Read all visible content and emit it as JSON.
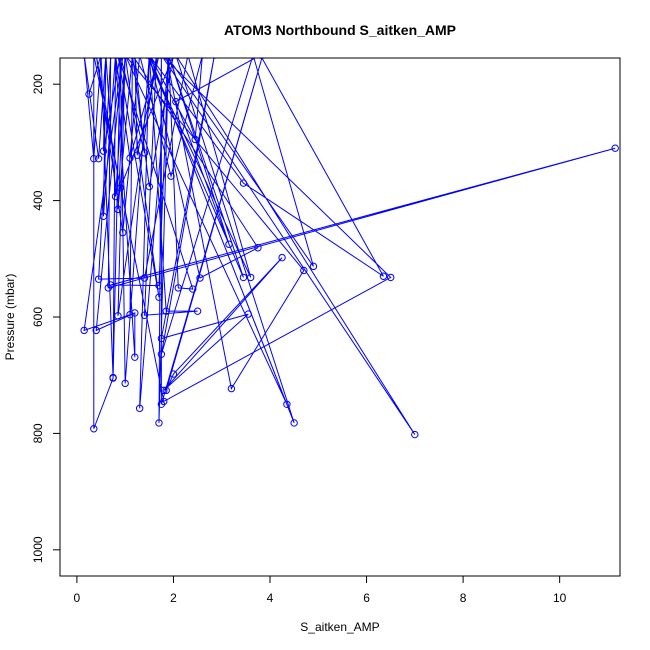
{
  "chart_data": {
    "type": "line",
    "title": "ATOM3 Northbound S_aitken_AMP",
    "xlabel": "S_aitken_AMP",
    "ylabel": "Pressure (mbar)",
    "xlim": [
      -0.35,
      11.25
    ],
    "ylim": [
      1045,
      155
    ],
    "y_reversed": true,
    "x_ticks": [
      0,
      2,
      4,
      6,
      8,
      10
    ],
    "y_ticks": [
      200,
      400,
      600,
      800,
      1000
    ],
    "grid": false,
    "legend": "none",
    "colors": {
      "series": "#0000ff"
    },
    "series": [
      {
        "marker": "open-circle",
        "points": [
          [
            0.5,
            150
          ],
          [
            0.25,
            217
          ],
          [
            0.5,
            150
          ],
          [
            0.35,
            328
          ],
          [
            0.15,
            150
          ],
          [
            0.45,
            328
          ],
          [
            0.6,
            150
          ],
          [
            0.55,
            315
          ],
          [
            0.9,
            150
          ],
          [
            1.4,
            318
          ],
          [
            1.2,
            150
          ],
          [
            1.25,
            322
          ],
          [
            1.7,
            150
          ],
          [
            1.1,
            327
          ],
          [
            0.8,
            150
          ],
          [
            0.55,
            427
          ],
          [
            0.6,
            150
          ],
          [
            0.8,
            393
          ],
          [
            1.0,
            150
          ],
          [
            0.85,
            415
          ],
          [
            1.15,
            150
          ],
          [
            1.5,
            376
          ],
          [
            2.0,
            150
          ],
          [
            0.9,
            378
          ],
          [
            0.4,
            150
          ],
          [
            0.95,
            455
          ],
          [
            1.3,
            150
          ],
          [
            1.95,
            358
          ],
          [
            2.6,
            150
          ],
          [
            2.45,
            295
          ],
          [
            1.5,
            150
          ],
          [
            3.45,
            370
          ],
          [
            6.35,
            530
          ],
          [
            3.8,
            150
          ],
          [
            2.05,
            230
          ],
          [
            3.15,
            475
          ],
          [
            1.9,
            150
          ],
          [
            3.45,
            532
          ],
          [
            1.45,
            150
          ],
          [
            3.6,
            532
          ],
          [
            2.3,
            150
          ],
          [
            1.4,
            533
          ],
          [
            0.45,
            535
          ],
          [
            0.7,
            150
          ],
          [
            0.65,
            550
          ],
          [
            11.15,
            310
          ],
          [
            0.7,
            545
          ],
          [
            1.7,
            546
          ],
          [
            1.9,
            150
          ],
          [
            2.1,
            550
          ],
          [
            2.4,
            552
          ],
          [
            0.85,
            150
          ],
          [
            1.7,
            566
          ],
          [
            1.0,
            150
          ],
          [
            0.85,
            598
          ],
          [
            1.65,
            150
          ],
          [
            1.4,
            597
          ],
          [
            2.5,
            590
          ],
          [
            1.85,
            590
          ],
          [
            1.5,
            150
          ],
          [
            2.55,
            533
          ],
          [
            3.75,
            481
          ],
          [
            1.15,
            150
          ],
          [
            1.1,
            596
          ],
          [
            0.15,
            623
          ],
          [
            0.95,
            150
          ],
          [
            0.4,
            623
          ],
          [
            1.2,
            593
          ],
          [
            1.2,
            669
          ],
          [
            0.8,
            150
          ],
          [
            0.75,
            704
          ],
          [
            0.9,
            150
          ],
          [
            1.0,
            714
          ],
          [
            1.5,
            150
          ],
          [
            1.3,
            757
          ],
          [
            1.9,
            150
          ],
          [
            1.7,
            782
          ],
          [
            1.75,
            150
          ],
          [
            1.75,
            750
          ],
          [
            3.85,
            150
          ],
          [
            1.85,
            726
          ],
          [
            2.0,
            698
          ],
          [
            4.25,
            498
          ],
          [
            1.8,
            726
          ],
          [
            3.55,
            595
          ],
          [
            1.75,
            637
          ],
          [
            2.85,
            150
          ],
          [
            1.75,
            664
          ],
          [
            3.65,
            150
          ],
          [
            4.9,
            513
          ],
          [
            1.85,
            150
          ],
          [
            3.2,
            723
          ],
          [
            4.7,
            520
          ],
          [
            1.0,
            150
          ],
          [
            4.35,
            750
          ],
          [
            1.5,
            150
          ],
          [
            4.5,
            782
          ],
          [
            2.05,
            150
          ],
          [
            7.0,
            802
          ],
          [
            1.75,
            150
          ],
          [
            6.5,
            532
          ],
          [
            1.8,
            745
          ],
          [
            0.35,
            150
          ],
          [
            0.35,
            792
          ],
          [
            0.75,
            705
          ],
          [
            0.5,
            150
          ]
        ]
      }
    ]
  }
}
